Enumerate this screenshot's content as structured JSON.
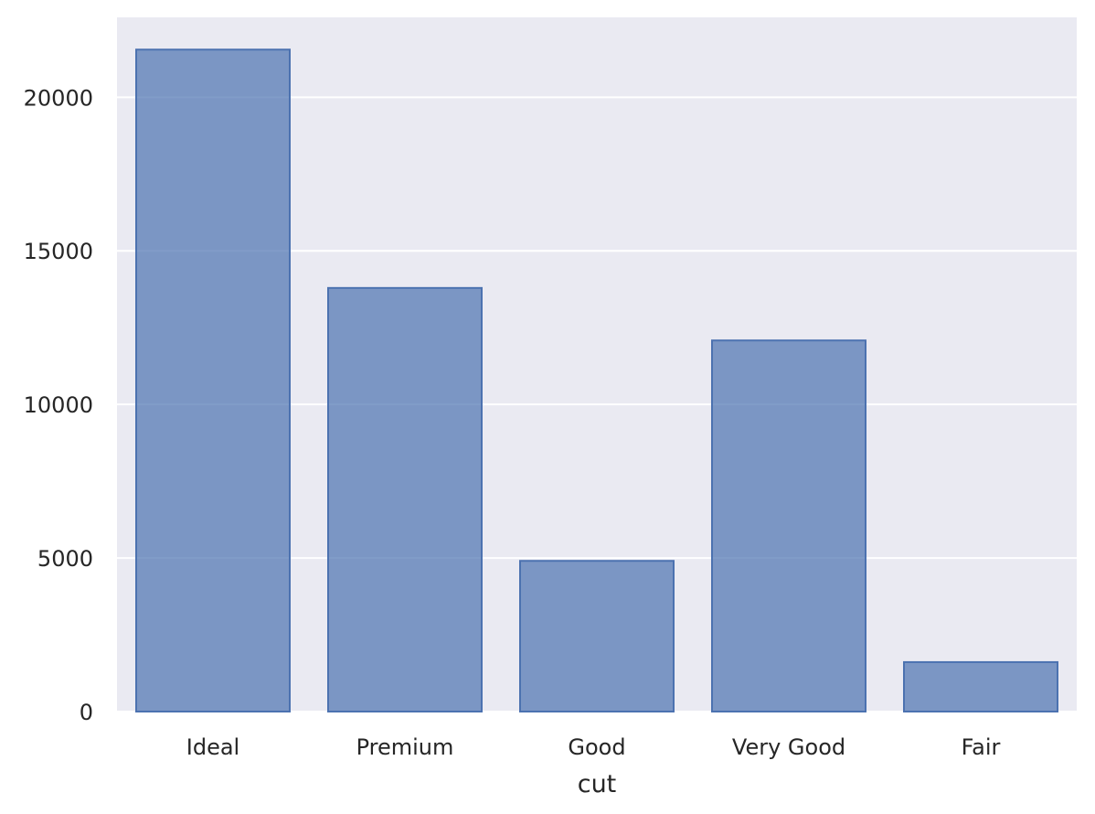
{
  "chart_data": {
    "type": "bar",
    "title": "",
    "xlabel": "cut",
    "ylabel": "",
    "categories": [
      "Ideal",
      "Premium",
      "Good",
      "Very Good",
      "Fair"
    ],
    "values": [
      21551,
      13791,
      4906,
      12082,
      1610
    ],
    "ylim": [
      0,
      22600
    ],
    "yticks": [
      0,
      5000,
      10000,
      15000,
      20000
    ],
    "grid": true,
    "legend": "none",
    "colors": {
      "background": "#eaeaf2",
      "grid": "#ffffff",
      "bar_fill": "#4c72b0",
      "bar_fill_opacity": 0.7,
      "bar_edge": "#4c72b0",
      "text": "#262626"
    }
  }
}
